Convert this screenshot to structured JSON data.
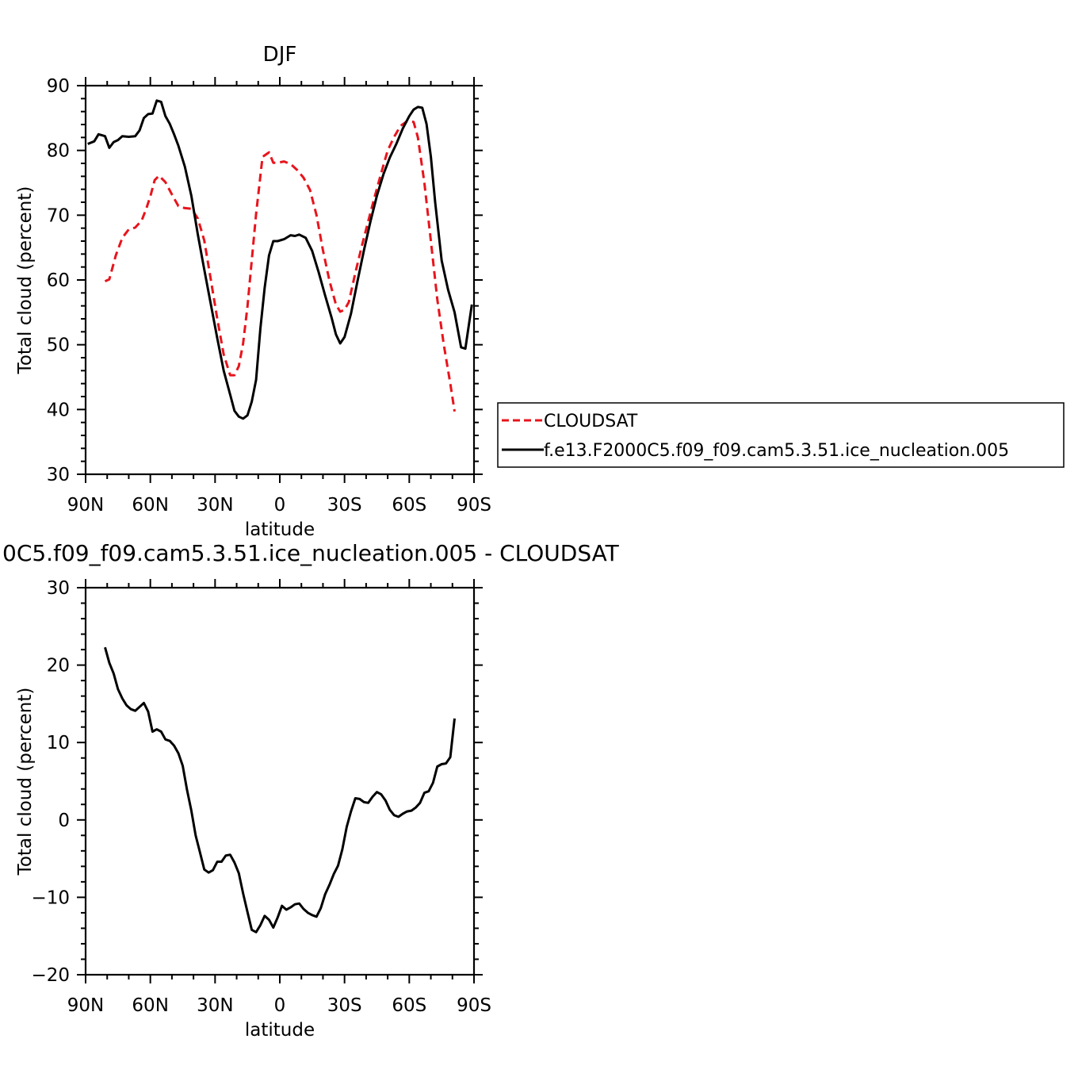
{
  "chart_data": [
    {
      "type": "line",
      "title": "DJF",
      "xlabel": "latitude",
      "ylabel": "Total cloud (percent)",
      "xlim": [
        90,
        -90
      ],
      "ylim": [
        30,
        90
      ],
      "xticks": [
        {
          "value": 90,
          "label": "90N"
        },
        {
          "value": 60,
          "label": "60N"
        },
        {
          "value": 30,
          "label": "30N"
        },
        {
          "value": 0,
          "label": "0"
        },
        {
          "value": -30,
          "label": "30S"
        },
        {
          "value": -60,
          "label": "60S"
        },
        {
          "value": -90,
          "label": "90S"
        }
      ],
      "yticks": [
        {
          "value": 30,
          "label": "30"
        },
        {
          "value": 40,
          "label": "40"
        },
        {
          "value": 50,
          "label": "50"
        },
        {
          "value": 60,
          "label": "60"
        },
        {
          "value": 70,
          "label": "70"
        },
        {
          "value": 80,
          "label": "80"
        },
        {
          "value": 90,
          "label": "90"
        }
      ],
      "legend_position": "right",
      "series": [
        {
          "name": "CLOUDSAT",
          "color": "#e8141c",
          "dash": "dashed",
          "x": [
            81,
            79,
            76,
            73,
            70,
            67,
            64,
            62,
            60,
            58,
            56,
            53,
            50,
            47,
            44,
            41,
            38,
            35,
            32,
            29,
            26,
            23,
            21,
            19,
            17,
            15,
            13,
            11,
            8,
            5,
            3,
            1,
            -2,
            -5,
            -8,
            -11,
            -14,
            -17,
            -20,
            -23,
            -26,
            -28,
            -30,
            -32,
            -35,
            -38,
            -41,
            -44,
            -47,
            -50,
            -53,
            -56,
            -59,
            -62,
            -64,
            -67,
            -70,
            -73,
            -76,
            -79,
            -81
          ],
          "y": [
            59.8,
            60.1,
            63.8,
            66.5,
            67.8,
            68.1,
            69.2,
            70.9,
            72.9,
            75.4,
            76.1,
            75.1,
            73.2,
            71.4,
            71.1,
            71.0,
            69.5,
            66.1,
            60.1,
            54.0,
            48.5,
            45.3,
            45.3,
            46.7,
            50.2,
            55.9,
            63.0,
            70.2,
            79.0,
            79.7,
            78.1,
            78.1,
            78.3,
            77.9,
            77.0,
            75.8,
            73.9,
            70.0,
            64.6,
            59.9,
            56.2,
            55.1,
            55.4,
            56.6,
            61.1,
            65.2,
            69.1,
            72.9,
            76.5,
            80.0,
            82.1,
            83.8,
            84.5,
            84.4,
            82.0,
            75.0,
            66.0,
            57.0,
            50.0,
            44.0,
            39.7
          ]
        },
        {
          "name": "f.e13.F2000C5.f09_f09.cam5.3.51.ice_nucleation.005",
          "color": "#000000",
          "dash": "solid",
          "x": [
            89,
            86,
            84,
            81,
            79,
            77,
            75,
            73,
            70,
            67,
            65,
            63,
            61,
            59,
            57,
            55,
            53,
            51,
            49,
            47,
            44,
            41,
            38,
            35,
            32,
            29,
            26,
            23,
            21,
            19,
            17,
            15,
            13,
            11,
            9,
            7,
            5,
            3,
            1,
            -2,
            -5,
            -7,
            -9,
            -12,
            -15,
            -18,
            -21,
            -24,
            -26,
            -28,
            -30,
            -33,
            -36,
            -39,
            -42,
            -45,
            -48,
            -51,
            -54,
            -57,
            -60,
            -62,
            -64,
            -66,
            -68,
            -70,
            -72,
            -75,
            -78,
            -81,
            -84,
            -86,
            -89
          ],
          "y": [
            81.0,
            81.4,
            82.5,
            82.2,
            80.4,
            81.3,
            81.6,
            82.2,
            82.1,
            82.2,
            83.1,
            85.0,
            85.6,
            85.7,
            87.7,
            87.5,
            85.3,
            84.1,
            82.5,
            80.7,
            77.5,
            73.0,
            67.0,
            61.6,
            56.3,
            51.0,
            46.0,
            42.3,
            39.8,
            38.9,
            38.6,
            39.1,
            41.2,
            44.6,
            52.5,
            58.8,
            63.8,
            66.0,
            66.0,
            66.3,
            66.9,
            66.8,
            67.0,
            66.5,
            64.5,
            61.2,
            57.6,
            54.2,
            51.6,
            50.2,
            51.2,
            54.8,
            59.8,
            64.6,
            69.0,
            73.0,
            76.3,
            78.9,
            81.0,
            83.4,
            85.3,
            86.3,
            86.7,
            86.6,
            84.1,
            79.0,
            72.0,
            63.0,
            58.5,
            55.0,
            49.6,
            49.4,
            56.2
          ]
        }
      ]
    },
    {
      "type": "line",
      "title": "0C5.f09_f09.cam5.3.51.ice_nucleation.005 - CLOUDSAT",
      "xlabel": "latitude",
      "ylabel": "Total cloud (percent)",
      "xlim": [
        90,
        -90
      ],
      "ylim": [
        -20,
        30
      ],
      "xticks": [
        {
          "value": 90,
          "label": "90N"
        },
        {
          "value": 60,
          "label": "60N"
        },
        {
          "value": 30,
          "label": "30N"
        },
        {
          "value": 0,
          "label": "0"
        },
        {
          "value": -30,
          "label": "30S"
        },
        {
          "value": -60,
          "label": "60S"
        },
        {
          "value": -90,
          "label": "90S"
        }
      ],
      "yticks": [
        {
          "value": -20,
          "label": "−20"
        },
        {
          "value": -10,
          "label": "−10"
        },
        {
          "value": 0,
          "label": "0"
        },
        {
          "value": 10,
          "label": "10"
        },
        {
          "value": 20,
          "label": "20"
        },
        {
          "value": 30,
          "label": "30"
        }
      ],
      "series": [
        {
          "color": "#000000",
          "dash": "solid",
          "x": [
            81,
            79,
            77,
            75,
            73,
            71,
            69,
            67,
            65,
            63,
            61,
            59,
            57,
            55,
            53,
            51,
            49,
            47,
            45,
            43,
            41,
            39,
            37,
            35,
            33,
            31,
            29,
            27,
            25,
            23,
            21,
            19,
            17,
            15,
            13,
            11,
            9,
            7,
            5,
            3,
            1,
            -1,
            -3,
            -5,
            -7,
            -9,
            -11,
            -13,
            -15,
            -17,
            -19,
            -21,
            -23,
            -25,
            -27,
            -29,
            -31,
            -33,
            -35,
            -37,
            -39,
            -41,
            -43,
            -45,
            -47,
            -49,
            -51,
            -53,
            -55,
            -57,
            -59,
            -61,
            -63,
            -65,
            -67,
            -69,
            -71,
            -73,
            -75,
            -77,
            -79,
            -81
          ],
          "y": [
            22.3,
            20.3,
            18.9,
            16.9,
            15.7,
            14.8,
            14.3,
            14.1,
            14.6,
            15.1,
            14.0,
            11.4,
            11.7,
            11.4,
            10.4,
            10.2,
            9.6,
            8.6,
            7.0,
            3.9,
            1.2,
            -2.0,
            -4.2,
            -6.4,
            -6.8,
            -6.5,
            -5.4,
            -5.4,
            -4.6,
            -4.5,
            -5.5,
            -6.9,
            -9.5,
            -11.9,
            -14.2,
            -14.5,
            -13.6,
            -12.4,
            -12.9,
            -13.9,
            -12.6,
            -11.1,
            -11.6,
            -11.3,
            -10.9,
            -10.8,
            -11.5,
            -12.0,
            -12.3,
            -12.5,
            -11.4,
            -9.6,
            -8.4,
            -7.0,
            -5.9,
            -3.8,
            -0.9,
            1.1,
            2.8,
            2.7,
            2.3,
            2.2,
            3.0,
            3.6,
            3.3,
            2.5,
            1.3,
            0.6,
            0.4,
            0.8,
            1.1,
            1.2,
            1.6,
            2.2,
            3.5,
            3.7,
            4.8,
            6.9,
            7.2,
            7.3,
            8.1,
            13.1
          ]
        }
      ]
    }
  ]
}
